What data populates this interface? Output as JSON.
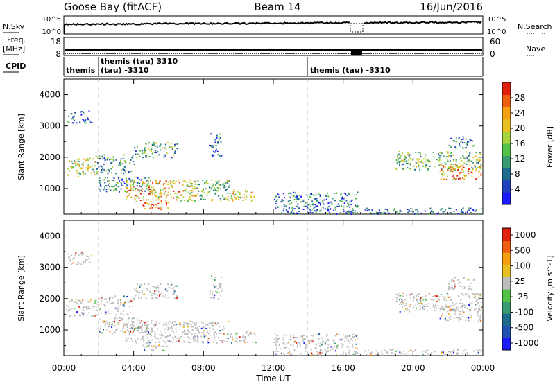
{
  "header": {
    "station": "Goose Bay (fitACF)",
    "beam": "Beam 14",
    "date": "16/Jun/2016"
  },
  "strip": {
    "nsky_label": "N.Sky",
    "nsearch_label": "N.Search",
    "freq_label_1": "Freq.",
    "freq_label_2": "[MHz]",
    "nave_label": "Nave",
    "cpid_label": "CPID",
    "nsky_ticks": [
      "10^5",
      "10^0"
    ],
    "nsearch_ticks": [
      "10^5",
      "10^0"
    ],
    "freq_ticks": [
      "18",
      "8"
    ],
    "nave_ticks": [
      "60",
      "0"
    ],
    "cpid_segments": [
      {
        "label": "themis",
        "sub": "",
        "start_hour": 0.0
      },
      {
        "label": "themis (tau) 3310",
        "sub": "(tau) -3310",
        "start_hour": 2.1
      },
      {
        "label": "themis (tau) -3310",
        "sub": "",
        "start_hour": 14.0
      }
    ]
  },
  "x_axis": {
    "title": "Time UT",
    "ticks": [
      "00:00",
      "04:00",
      "08:00",
      "12:00",
      "16:00",
      "20:00",
      "00:00"
    ],
    "tick_hours": [
      0,
      4,
      8,
      12,
      16,
      20,
      24
    ],
    "range_hours": [
      0,
      24
    ]
  },
  "chart_data": [
    {
      "type": "heatmap",
      "title": "",
      "ylabel": "Slant Range [km]",
      "xlabel": "Time UT",
      "ylim": [
        180,
        4500
      ],
      "yticks": [
        1000,
        2000,
        3000,
        4000
      ],
      "colorbar": {
        "label": "Power [dB]",
        "ticks": [
          "4",
          "8",
          "12",
          "16",
          "20",
          "24",
          "28"
        ],
        "colors": [
          "#1a1aff",
          "#2040c0",
          "#1f6b8e",
          "#3c9a70",
          "#55c24a",
          "#a8d33a",
          "#e8c020",
          "#f5a010",
          "#ee6010",
          "#e22010"
        ]
      },
      "bands": [
        {
          "t0": 0.1,
          "t1": 1.8,
          "r0": 1400,
          "r1": 2000,
          "level": 0.55
        },
        {
          "t0": 1.8,
          "t1": 4.0,
          "r0": 1500,
          "r1": 2100,
          "level": 0.35
        },
        {
          "t0": 4.0,
          "t1": 6.5,
          "r0": 2000,
          "r1": 2500,
          "level": 0.4
        },
        {
          "t0": 0.2,
          "t1": 1.6,
          "r0": 3100,
          "r1": 3500,
          "level": 0.2
        },
        {
          "t0": 2.0,
          "t1": 5.0,
          "r0": 900,
          "r1": 1400,
          "level": 0.3
        },
        {
          "t0": 3.5,
          "t1": 7.5,
          "r0": 600,
          "r1": 1300,
          "level": 0.7
        },
        {
          "t0": 4.5,
          "t1": 6.0,
          "r0": 350,
          "r1": 600,
          "level": 0.85
        },
        {
          "t0": 7.0,
          "t1": 9.5,
          "r0": 600,
          "r1": 1300,
          "level": 0.45
        },
        {
          "t0": 9.5,
          "t1": 11.0,
          "r0": 600,
          "r1": 1000,
          "level": 0.6
        },
        {
          "t0": 8.3,
          "t1": 9.0,
          "r0": 2000,
          "r1": 2800,
          "level": 0.2
        },
        {
          "t0": 12.0,
          "t1": 16.8,
          "r0": 200,
          "r1": 900,
          "level": 0.25
        },
        {
          "t0": 17.2,
          "t1": 23.9,
          "r0": 200,
          "r1": 400,
          "level": 0.2
        },
        {
          "t0": 19.0,
          "t1": 23.9,
          "r0": 1600,
          "r1": 2200,
          "level": 0.45
        },
        {
          "t0": 21.5,
          "t1": 23.9,
          "r0": 1300,
          "r1": 1800,
          "level": 0.75
        },
        {
          "t0": 22.0,
          "t1": 23.5,
          "r0": 2300,
          "r1": 2700,
          "level": 0.25
        }
      ]
    },
    {
      "type": "heatmap",
      "title": "",
      "ylabel": "Slant Range [km]",
      "xlabel": "Time UT",
      "ylim": [
        180,
        4500
      ],
      "yticks": [
        1000,
        2000,
        3000,
        4000
      ],
      "colorbar": {
        "label": "Velocity [m s^-1]",
        "ticks": [
          "1000",
          "500",
          "100",
          "25",
          "-25",
          "-100",
          "-500",
          "-1000"
        ],
        "colors": [
          "#1a1aff",
          "#2050b0",
          "#1f6b8e",
          "#3c9a70",
          "#55c24a",
          "#bdbdbd",
          "#e8c020",
          "#f5a010",
          "#ee6010",
          "#e22010"
        ]
      },
      "bands": [
        {
          "t0": 0.1,
          "t1": 1.8,
          "r0": 1400,
          "r1": 2000,
          "level": 0.5
        },
        {
          "t0": 1.8,
          "t1": 4.0,
          "r0": 1500,
          "r1": 2100,
          "level": 0.5
        },
        {
          "t0": 4.0,
          "t1": 6.5,
          "r0": 2000,
          "r1": 2500,
          "level": 0.5
        },
        {
          "t0": 0.2,
          "t1": 1.6,
          "r0": 3100,
          "r1": 3500,
          "level": 0.5
        },
        {
          "t0": 2.0,
          "t1": 5.0,
          "r0": 900,
          "r1": 1400,
          "level": 0.5
        },
        {
          "t0": 3.5,
          "t1": 7.5,
          "r0": 600,
          "r1": 1300,
          "level": 0.5
        },
        {
          "t0": 4.5,
          "t1": 6.0,
          "r0": 350,
          "r1": 600,
          "level": 0.45
        },
        {
          "t0": 7.0,
          "t1": 9.5,
          "r0": 600,
          "r1": 1300,
          "level": 0.5
        },
        {
          "t0": 9.5,
          "t1": 11.0,
          "r0": 600,
          "r1": 1000,
          "level": 0.5
        },
        {
          "t0": 8.3,
          "t1": 9.0,
          "r0": 2000,
          "r1": 2800,
          "level": 0.5
        },
        {
          "t0": 12.0,
          "t1": 16.8,
          "r0": 200,
          "r1": 900,
          "level": 0.5
        },
        {
          "t0": 17.2,
          "t1": 23.9,
          "r0": 200,
          "r1": 400,
          "level": 0.5
        },
        {
          "t0": 19.0,
          "t1": 23.9,
          "r0": 1600,
          "r1": 2200,
          "level": 0.5
        },
        {
          "t0": 21.5,
          "t1": 23.9,
          "r0": 1300,
          "r1": 1800,
          "level": 0.5
        },
        {
          "t0": 22.0,
          "t1": 23.5,
          "r0": 2300,
          "r1": 2700,
          "level": 0.5
        }
      ]
    }
  ]
}
